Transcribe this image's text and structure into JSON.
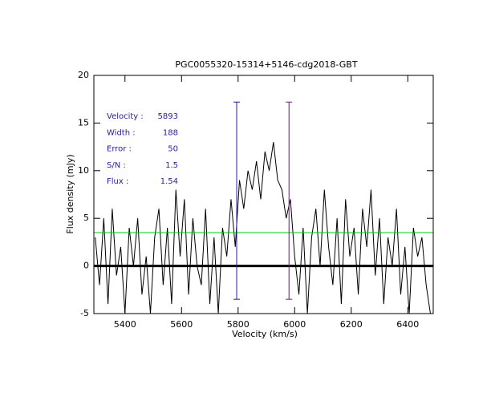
{
  "chart_data": {
    "type": "line",
    "title": "PGC0055320-15314+5146-cdg2018-GBT",
    "xlabel": "Velocity (km/s)",
    "ylabel": "Flux density (mJy)",
    "xlim": [
      5290,
      6490
    ],
    "ylim": [
      -5,
      20
    ],
    "xticks": [
      5400,
      5600,
      5800,
      6000,
      6200,
      6400
    ],
    "yticks": [
      -5,
      0,
      5,
      10,
      15,
      20
    ],
    "series": [
      {
        "color": "#000000",
        "x": [
          5295,
          5310,
          5325,
          5340,
          5355,
          5370,
          5385,
          5400,
          5415,
          5430,
          5445,
          5460,
          5475,
          5490,
          5505,
          5520,
          5535,
          5550,
          5565,
          5580,
          5595,
          5610,
          5625,
          5640,
          5655,
          5670,
          5685,
          5700,
          5715,
          5730,
          5745,
          5760,
          5775,
          5790,
          5805,
          5820,
          5835,
          5850,
          5865,
          5880,
          5895,
          5910,
          5925,
          5940,
          5955,
          5970,
          5985,
          6000,
          6015,
          6030,
          6045,
          6060,
          6075,
          6090,
          6105,
          6120,
          6135,
          6150,
          6165,
          6180,
          6195,
          6210,
          6225,
          6240,
          6255,
          6270,
          6285,
          6300,
          6315,
          6330,
          6345,
          6360,
          6375,
          6390,
          6405,
          6420,
          6435,
          6450,
          6465,
          6480
        ],
        "values": [
          3,
          -2,
          5,
          -4,
          6,
          -1,
          2,
          -5,
          4,
          0,
          5,
          -3,
          1,
          -5,
          3,
          6,
          -2,
          4,
          -4,
          8,
          1,
          7,
          -3,
          5,
          0,
          -2,
          6,
          -4,
          3,
          -5,
          4,
          1,
          7,
          2,
          9,
          6,
          10,
          8,
          11,
          7,
          12,
          10,
          13,
          9,
          8,
          5,
          7,
          1,
          -3,
          4,
          -5,
          3,
          6,
          0,
          8,
          2,
          -2,
          5,
          -4,
          7,
          1,
          4,
          -3,
          6,
          2,
          8,
          -1,
          5,
          -4,
          3,
          0,
          6,
          -3,
          2,
          -5,
          4,
          1,
          3,
          -2,
          -5
        ]
      }
    ],
    "hlines": [
      {
        "y": 3.5,
        "color": "#00cc00"
      },
      {
        "y": 0,
        "color": "#000000"
      }
    ],
    "markers": [
      {
        "x": 5795,
        "ymin": -3.5,
        "ymax": 17.2,
        "color": "#2a1a9c"
      },
      {
        "x": 5980,
        "ymin": -3.5,
        "ymax": 17.2,
        "color": "#6a1a70"
      }
    ],
    "annotations": [
      {
        "label": "Velocity :",
        "value": 5893
      },
      {
        "label": "Width :",
        "value": 188
      },
      {
        "label": "Error :",
        "value": 50
      },
      {
        "label": "S/N :",
        "value": 1.5
      },
      {
        "label": "Flux :",
        "value": 1.54
      }
    ]
  }
}
